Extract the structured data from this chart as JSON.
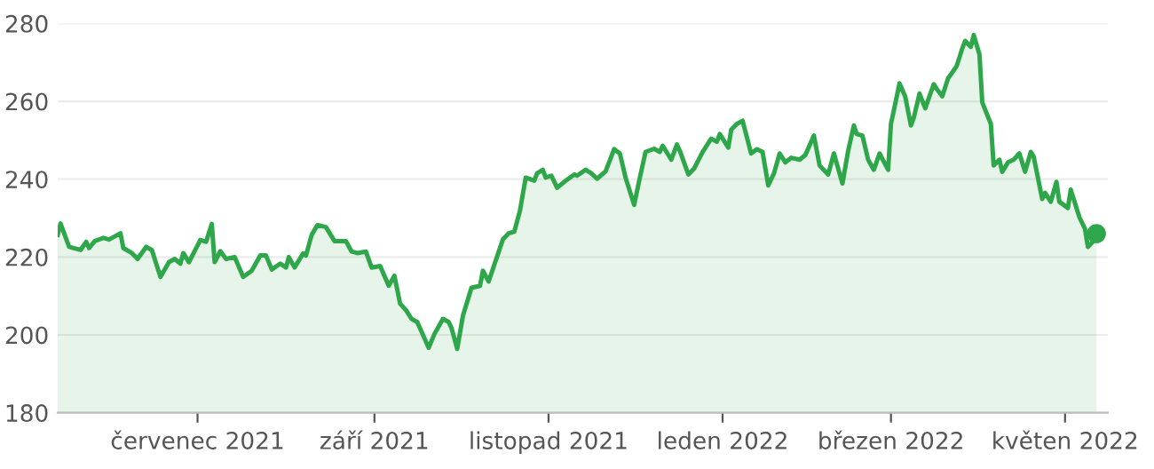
{
  "chart_data": {
    "type": "area",
    "x": [
      "2021-05-13",
      "2021-05-14",
      "2021-05-17",
      "2021-05-21",
      "2021-05-23",
      "2021-05-24",
      "2021-05-26",
      "2021-05-29",
      "2021-05-31",
      "2021-06-04",
      "2021-06-05",
      "2021-06-08",
      "2021-06-10",
      "2021-06-13",
      "2021-06-15",
      "2021-06-18",
      "2021-06-21",
      "2021-06-23",
      "2021-06-25",
      "2021-06-26",
      "2021-06-28",
      "2021-07-02",
      "2021-07-04",
      "2021-07-06",
      "2021-07-07",
      "2021-07-09",
      "2021-07-11",
      "2021-07-14",
      "2021-07-17",
      "2021-07-20",
      "2021-07-23",
      "2021-07-25",
      "2021-07-27",
      "2021-07-30",
      "2021-08-01",
      "2021-08-02",
      "2021-08-04",
      "2021-08-07",
      "2021-08-08",
      "2021-08-10",
      "2021-08-12",
      "2021-08-15",
      "2021-08-18",
      "2021-08-22",
      "2021-08-24",
      "2021-08-26",
      "2021-08-29",
      "2021-08-31",
      "2021-09-03",
      "2021-09-06",
      "2021-09-08",
      "2021-09-10",
      "2021-09-12",
      "2021-09-14",
      "2021-09-16",
      "2021-09-20",
      "2021-09-22",
      "2021-09-25",
      "2021-09-27",
      "2021-09-28",
      "2021-09-30",
      "2021-10-02",
      "2021-10-05",
      "2021-10-08",
      "2021-10-09",
      "2021-10-11",
      "2021-10-16",
      "2021-10-18",
      "2021-10-20",
      "2021-10-22",
      "2021-10-24",
      "2021-10-27",
      "2021-10-28",
      "2021-10-30",
      "2021-10-31",
      "2021-11-02",
      "2021-11-04",
      "2021-11-07",
      "2021-11-10",
      "2021-11-11",
      "2021-11-14",
      "2021-11-16",
      "2021-11-18",
      "2021-11-21",
      "2021-11-24",
      "2021-11-26",
      "2021-11-28",
      "2021-12-01",
      "2021-12-03",
      "2021-12-05",
      "2021-12-08",
      "2021-12-10",
      "2021-12-11",
      "2021-12-14",
      "2021-12-16",
      "2021-12-17",
      "2021-12-20",
      "2021-12-22",
      "2021-12-25",
      "2021-12-28",
      "2021-12-30",
      "2021-12-31",
      "2022-01-03",
      "2022-01-04",
      "2022-01-06",
      "2022-01-08",
      "2022-01-11",
      "2022-01-13",
      "2022-01-15",
      "2022-01-17",
      "2022-01-19",
      "2022-01-21",
      "2022-01-23",
      "2022-01-25",
      "2022-01-28",
      "2022-01-30",
      "2022-02-02",
      "2022-02-04",
      "2022-02-07",
      "2022-02-09",
      "2022-02-12",
      "2022-02-14",
      "2022-02-16",
      "2022-02-17",
      "2022-02-19",
      "2022-02-21",
      "2022-02-23",
      "2022-02-25",
      "2022-02-28",
      "2022-03-01",
      "2022-03-04",
      "2022-03-06",
      "2022-03-08",
      "2022-03-09",
      "2022-03-11",
      "2022-03-13",
      "2022-03-16",
      "2022-03-17",
      "2022-03-19",
      "2022-03-21",
      "2022-03-24",
      "2022-03-26",
      "2022-03-27",
      "2022-03-29",
      "2022-03-30",
      "2022-04-01",
      "2022-04-02",
      "2022-04-05",
      "2022-04-06",
      "2022-04-08",
      "2022-04-09",
      "2022-04-11",
      "2022-04-13",
      "2022-04-15",
      "2022-04-17",
      "2022-04-19",
      "2022-04-20",
      "2022-04-23",
      "2022-04-24",
      "2022-04-26",
      "2022-04-28",
      "2022-04-29",
      "2022-05-02",
      "2022-05-03",
      "2022-05-06",
      "2022-05-08",
      "2022-05-09",
      "2022-05-11",
      "2022-05-12"
    ],
    "series": [
      {
        "color": "#2ea64a",
        "values": [
          225.7,
          228.6,
          222.6,
          221.8,
          223.9,
          222.3,
          224.1,
          224.9,
          224.5,
          226.1,
          222.3,
          221.0,
          219.5,
          222.6,
          221.8,
          214.9,
          218.7,
          219.5,
          218.3,
          221.0,
          218.7,
          224.4,
          223.9,
          228.5,
          218.7,
          221.5,
          219.5,
          220.0,
          214.9,
          216.5,
          220.4,
          220.4,
          216.8,
          218.3,
          217.3,
          220.0,
          217.3,
          220.9,
          220.4,
          225.7,
          228.2,
          227.7,
          224.1,
          224.1,
          221.4,
          221.0,
          221.4,
          217.3,
          217.7,
          212.6,
          215.2,
          208.0,
          206.4,
          204.1,
          203.3,
          196.7,
          200.2,
          204.1,
          203.3,
          201.8,
          196.4,
          204.9,
          212.1,
          212.6,
          216.5,
          213.7,
          224.5,
          226.1,
          226.5,
          231.9,
          240.4,
          239.6,
          241.5,
          242.4,
          240.4,
          240.9,
          237.8,
          239.6,
          241.2,
          240.9,
          242.4,
          241.5,
          240.1,
          242.0,
          247.7,
          246.6,
          240.4,
          233.4,
          240.4,
          247.0,
          247.8,
          247.0,
          248.6,
          245.0,
          248.9,
          247.3,
          241.2,
          242.7,
          247.0,
          250.4,
          249.6,
          251.6,
          248.1,
          252.7,
          254.2,
          255.0,
          246.6,
          247.7,
          247.0,
          238.4,
          241.5,
          246.6,
          244.3,
          245.5,
          245.0,
          246.2,
          251.2,
          243.5,
          241.2,
          246.6,
          238.9,
          247.3,
          253.8,
          251.6,
          251.2,
          245.0,
          242.4,
          246.6,
          242.4,
          254.2,
          264.6,
          261.2,
          253.8,
          255.8,
          262.0,
          258.2,
          264.4,
          263.2,
          261.3,
          265.9,
          269.0,
          273.6,
          275.5,
          274.0,
          277.0,
          272.1,
          259.7,
          254.2,
          243.5,
          245.0,
          241.9,
          244.3,
          245.0,
          246.6,
          241.9,
          247.0,
          245.8,
          234.9,
          236.5,
          234.2,
          239.3,
          234.2,
          232.6,
          237.3,
          230.3,
          227.2,
          222.6,
          224.1,
          226.0
        ]
      },
      {
        "type": "scatter",
        "color": "#2ea64a",
        "x": [
          "2022-05-12"
        ],
        "values": [
          226.0
        ],
        "marker": "circle"
      }
    ],
    "xlim": [
      "2021-05-13",
      "2022-05-16"
    ],
    "xticks": [
      {
        "value": "2021-07-01",
        "label": "červenec 2021"
      },
      {
        "value": "2021-09-01",
        "label": "září 2021"
      },
      {
        "value": "2021-11-01",
        "label": "listopad 2021"
      },
      {
        "value": "2022-01-01",
        "label": "leden 2022"
      },
      {
        "value": "2022-03-01",
        "label": "březen 2022"
      },
      {
        "value": "2022-05-01",
        "label": "květen 2022"
      }
    ],
    "ylim": [
      180,
      280
    ],
    "yticks": [
      180,
      200,
      220,
      240,
      260,
      280
    ],
    "grid": "y"
  }
}
